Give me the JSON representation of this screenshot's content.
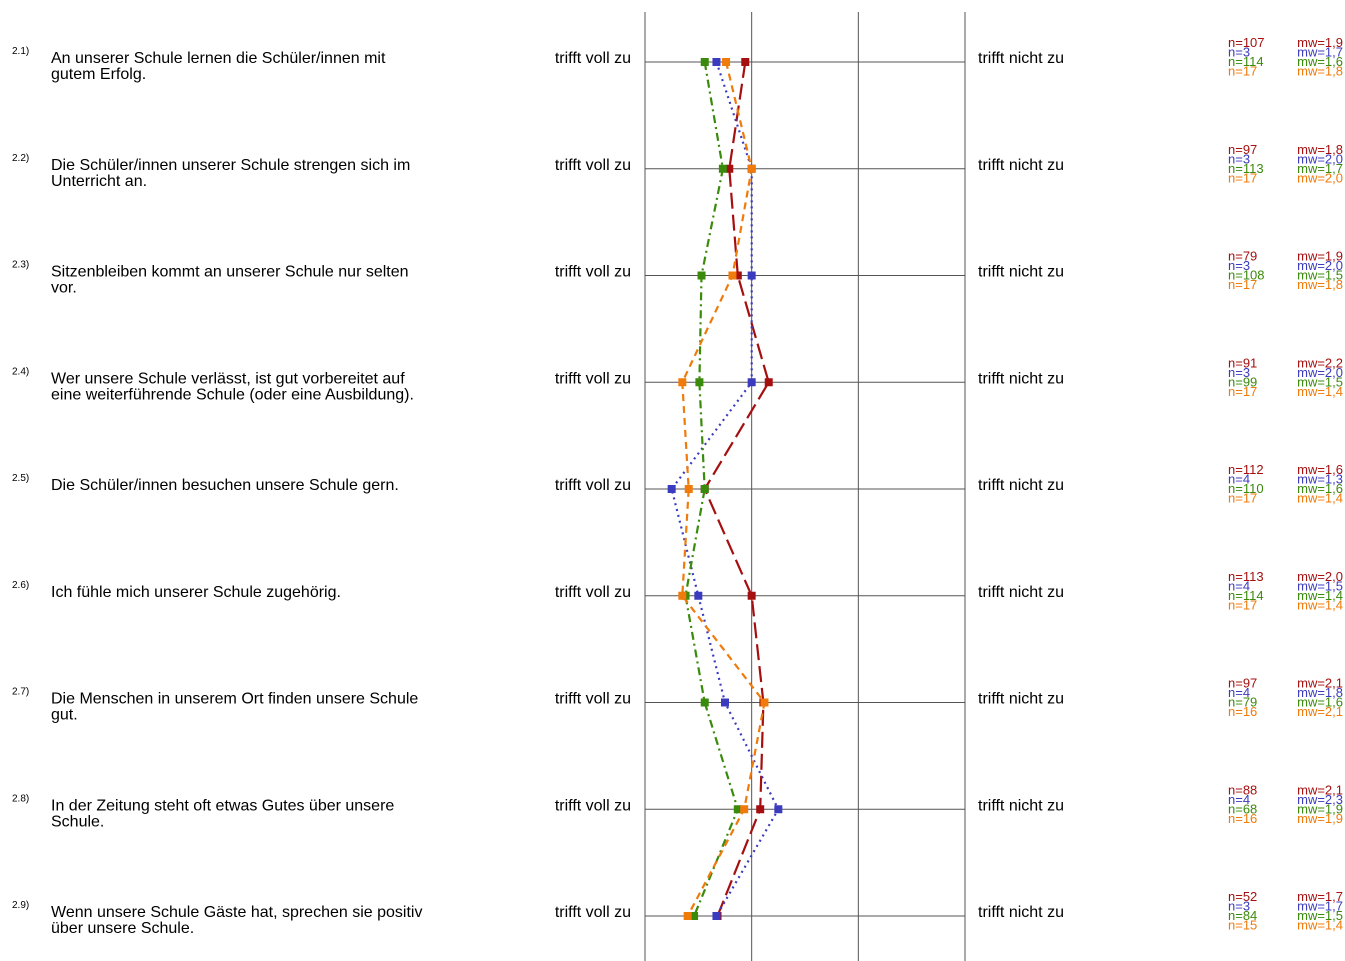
{
  "chart_data": {
    "type": "line",
    "orientation": "vertical-profile",
    "scale_anchors": {
      "left": "trifft voll zu",
      "right": "trifft nicht zu"
    },
    "xlim": [
      1,
      4
    ],
    "grid": true,
    "series_colors": [
      "#A50F0F",
      "#3B3BBF",
      "#3A8A0C",
      "#F07A0A"
    ],
    "series_styles": [
      "longdash",
      "dotted",
      "dashdot",
      "dashed"
    ],
    "items": [
      {
        "num": "2.1)",
        "text_lines": [
          "An unserer Schule lernen die Schüler/innen mit",
          "gutem Erfolg."
        ],
        "n": [
          "n=107",
          "n=3",
          "n=114",
          "n=17"
        ],
        "mw": [
          "mw=1,9",
          "mw=1,7",
          "mw=1,6",
          "mw=1,8"
        ]
      },
      {
        "num": "2.2)",
        "text_lines": [
          "Die Schüler/innen unserer Schule strengen sich im",
          "Unterricht an."
        ],
        "n": [
          "n=97",
          "n=3",
          "n=113",
          "n=17"
        ],
        "mw": [
          "mw=1,8",
          "mw=2,0",
          "mw=1,7",
          "mw=2,0"
        ]
      },
      {
        "num": "2.3)",
        "text_lines": [
          "Sitzenbleiben kommt an unserer Schule nur selten",
          "vor."
        ],
        "n": [
          "n=79",
          "n=3",
          "n=108",
          "n=17"
        ],
        "mw": [
          "mw=1,9",
          "mw=2,0",
          "mw=1,5",
          "mw=1,8"
        ]
      },
      {
        "num": "2.4)",
        "text_lines": [
          "Wer unsere Schule verlässt, ist gut vorbereitet auf",
          "eine weiterführende Schule (oder eine Ausbildung)."
        ],
        "n": [
          "n=91",
          "n=3",
          "n=99",
          "n=17"
        ],
        "mw": [
          "mw=2,2",
          "mw=2,0",
          "mw=1,5",
          "mw=1,4"
        ]
      },
      {
        "num": "2.5)",
        "text_lines": [
          "Die Schüler/innen besuchen unsere Schule gern."
        ],
        "n": [
          "n=112",
          "n=4",
          "n=110",
          "n=17"
        ],
        "mw": [
          "mw=1,6",
          "mw=1,3",
          "mw=1,6",
          "mw=1,4"
        ]
      },
      {
        "num": "2.6)",
        "text_lines": [
          "Ich fühle mich unserer Schule zugehörig."
        ],
        "n": [
          "n=113",
          "n=4",
          "n=114",
          "n=17"
        ],
        "mw": [
          "mw=2,0",
          "mw=1,5",
          "mw=1,4",
          "mw=1,4"
        ]
      },
      {
        "num": "2.7)",
        "text_lines": [
          "Die Menschen in unserem Ort finden unsere Schule",
          "gut."
        ],
        "n": [
          "n=97",
          "n=4",
          "n=79",
          "n=16"
        ],
        "mw": [
          "mw=2,1",
          "mw=1,8",
          "mw=1,6",
          "mw=2,1"
        ]
      },
      {
        "num": "2.8)",
        "text_lines": [
          "In der Zeitung steht oft etwas Gutes über unsere",
          "Schule."
        ],
        "n": [
          "n=88",
          "n=4",
          "n=68",
          "n=16"
        ],
        "mw": [
          "mw=2,1",
          "mw=2,3",
          "mw=1,9",
          "mw=1,9"
        ]
      },
      {
        "num": "2.9)",
        "text_lines": [
          "Wenn unsere Schule Gäste hat, sprechen sie positiv",
          "über unsere Schule."
        ],
        "n": [
          "n=52",
          "n=3",
          "n=84",
          "n=15"
        ],
        "mw": [
          "mw=1,7",
          "mw=1,7",
          "mw=1,5",
          "mw=1,4"
        ]
      }
    ],
    "series": [
      {
        "values": [
          1.94,
          1.79,
          1.87,
          2.16,
          1.56,
          2.0,
          2.11,
          2.08,
          1.68
        ]
      },
      {
        "values": [
          1.67,
          2.0,
          2.0,
          2.0,
          1.25,
          1.5,
          1.75,
          2.25,
          1.67
        ]
      },
      {
        "values": [
          1.56,
          1.73,
          1.53,
          1.51,
          1.56,
          1.38,
          1.56,
          1.87,
          1.46
        ]
      },
      {
        "values": [
          1.76,
          2.0,
          1.82,
          1.35,
          1.41,
          1.35,
          2.12,
          1.93,
          1.4
        ]
      }
    ]
  }
}
